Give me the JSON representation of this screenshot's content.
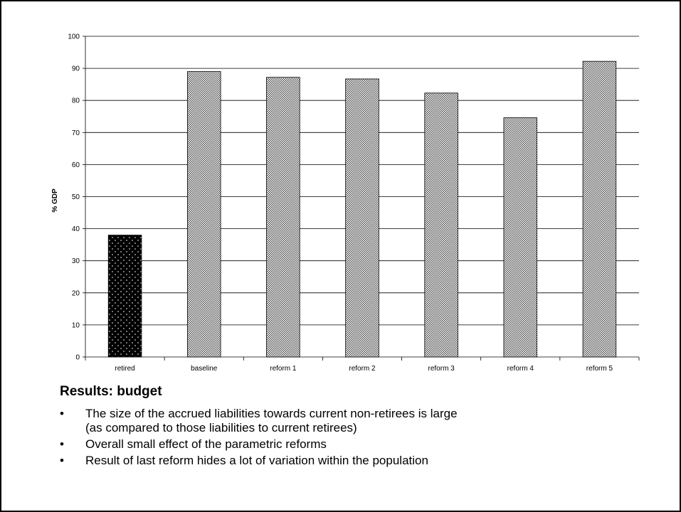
{
  "chart_data": {
    "type": "bar",
    "categories": [
      "retired",
      "baseline",
      "reform 1",
      "reform 2",
      "reform 3",
      "reform 4",
      "reform 5"
    ],
    "values": [
      38,
      89,
      87.2,
      86.7,
      82.3,
      74.6,
      92.2
    ],
    "title": "",
    "xlabel": "",
    "ylabel": "% GDP",
    "ylim": [
      0,
      100
    ],
    "yticks": [
      0,
      10,
      20,
      30,
      40,
      50,
      60,
      70,
      80,
      90,
      100
    ],
    "grid": true,
    "legend": "none",
    "bar_styles": [
      "dotted-black",
      "crosshatch",
      "crosshatch",
      "crosshatch",
      "crosshatch",
      "crosshatch",
      "crosshatch"
    ]
  },
  "slide": {
    "heading": "Results: budget",
    "bullets": [
      {
        "marker": "•",
        "lines": [
          "The size of the accrued liabilities towards current non-retirees is large",
          "(as compared to those liabilities to current retirees)"
        ]
      },
      {
        "marker": "•",
        "lines": [
          "Overall small effect of the parametric reforms"
        ]
      },
      {
        "marker": "•",
        "lines": [
          "Result of last reform hides a lot of variation within the population"
        ]
      }
    ]
  },
  "colors": {
    "bar_fill_dark": "#000000",
    "bar_fill_light": "#ffffff",
    "grid": "#000000",
    "text": "#000000"
  }
}
